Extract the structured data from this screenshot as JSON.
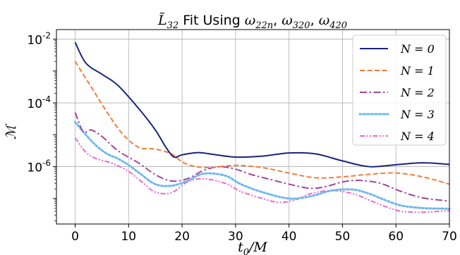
{
  "chart_data": {
    "type": "line",
    "title": {
      "prefix": "L",
      "prefix_sub": "32",
      "middle": " Fit Using ",
      "terms": [
        {
          "base": "ω",
          "sub": "22n"
        },
        {
          "base": "ω",
          "sub": "320"
        },
        {
          "base": "ω",
          "sub": "420"
        }
      ],
      "separator": ", "
    },
    "xlabel": {
      "base": "t",
      "sub": "0",
      "rest": "/M"
    },
    "ylabel": "ℳ",
    "xlim": [
      -3.5,
      70
    ],
    "ylim_log10": [
      -7.8,
      -1.7
    ],
    "x_ticks": [
      {
        "value": 0,
        "label": "0"
      },
      {
        "value": 10,
        "label": "10"
      },
      {
        "value": 20,
        "label": "20"
      },
      {
        "value": 30,
        "label": "30"
      },
      {
        "value": 40,
        "label": "40"
      },
      {
        "value": 50,
        "label": "50"
      },
      {
        "value": 60,
        "label": "60"
      },
      {
        "value": 70,
        "label": "70"
      }
    ],
    "y_ticks": [
      {
        "exp": -2,
        "base": "10",
        "label": "-2"
      },
      {
        "exp": -4,
        "base": "10",
        "label": "-4"
      },
      {
        "exp": -6,
        "base": "10",
        "label": "-6"
      }
    ],
    "grid": true,
    "legend_position": "top-right",
    "series": [
      {
        "name": "N = 0",
        "color": "#1a237e",
        "dash": "solid",
        "x": [
          0,
          2,
          5,
          8,
          12,
          15,
          17,
          18.5,
          20,
          23,
          26,
          30,
          35,
          40,
          45,
          50,
          55,
          60,
          65,
          70
        ],
        "log10_y": [
          -2.1,
          -2.75,
          -3.1,
          -3.45,
          -4.2,
          -4.85,
          -5.4,
          -5.7,
          -5.63,
          -5.56,
          -5.62,
          -5.7,
          -5.67,
          -5.57,
          -5.6,
          -5.82,
          -6.0,
          -5.94,
          -5.88,
          -5.93
        ]
      },
      {
        "name": "N = 1",
        "color": "#f47c3c",
        "dash": "dashed",
        "x": [
          0,
          3,
          6,
          9,
          12,
          15,
          18,
          20,
          22,
          25,
          30,
          35,
          40,
          45,
          50,
          55,
          60,
          65,
          70
        ],
        "log10_y": [
          -2.7,
          -3.5,
          -4.3,
          -5.0,
          -5.4,
          -5.45,
          -5.6,
          -5.85,
          -5.98,
          -6.03,
          -5.96,
          -6.03,
          -6.2,
          -6.35,
          -6.32,
          -6.24,
          -6.2,
          -6.32,
          -6.55
        ]
      },
      {
        "name": "N = 2",
        "color": "#a2469a",
        "dash": "dashdot",
        "x": [
          0,
          1.5,
          3,
          5,
          8,
          12,
          15,
          18,
          21,
          24,
          27,
          30,
          33,
          36,
          40,
          44,
          47,
          50,
          53,
          57,
          61,
          65,
          70
        ],
        "log10_y": [
          -4.3,
          -4.9,
          -4.85,
          -5.05,
          -5.5,
          -5.9,
          -6.25,
          -6.45,
          -6.38,
          -6.12,
          -6.0,
          -6.08,
          -6.25,
          -6.38,
          -6.55,
          -6.68,
          -6.62,
          -6.48,
          -6.43,
          -6.52,
          -6.78,
          -6.98,
          -7.08
        ]
      },
      {
        "name": "N = 3",
        "color": "#6fb8ee",
        "dash": "dotted",
        "x": [
          0,
          2,
          4,
          6,
          8,
          10,
          12,
          15,
          18,
          21,
          24,
          28,
          31,
          35,
          40,
          44,
          48,
          52,
          55,
          58,
          61,
          65,
          70
        ],
        "log10_y": [
          -4.6,
          -5.0,
          -5.35,
          -5.6,
          -5.75,
          -5.95,
          -6.2,
          -6.55,
          -6.6,
          -6.45,
          -6.22,
          -6.28,
          -6.55,
          -6.8,
          -7.0,
          -6.93,
          -6.75,
          -6.72,
          -6.85,
          -7.05,
          -7.22,
          -7.3,
          -7.32
        ]
      },
      {
        "name": "N = 4",
        "color": "#f266c8",
        "dash": "dashdotdot",
        "x": [
          0,
          2,
          4,
          7,
          10,
          13,
          15,
          18,
          21,
          24,
          28,
          31,
          35,
          38,
          41,
          44,
          48,
          52,
          55,
          58,
          61,
          65,
          70
        ],
        "log10_y": [
          -5.1,
          -5.55,
          -5.75,
          -5.9,
          -6.15,
          -6.55,
          -6.8,
          -6.82,
          -6.48,
          -6.38,
          -6.52,
          -6.78,
          -7.0,
          -7.12,
          -7.05,
          -6.85,
          -6.75,
          -6.85,
          -7.05,
          -7.25,
          -7.4,
          -7.43,
          -7.38
        ]
      }
    ]
  }
}
